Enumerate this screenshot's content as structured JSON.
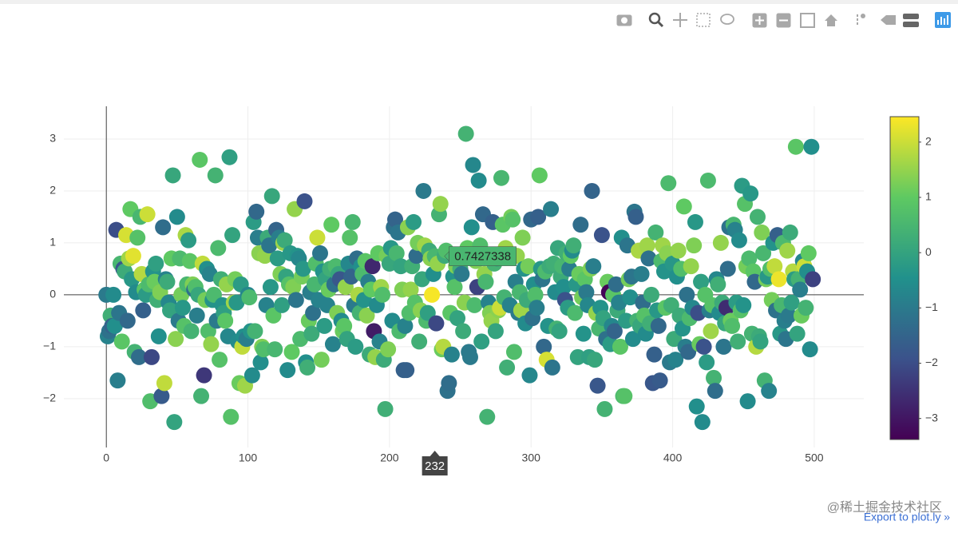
{
  "chart_data": {
    "type": "scatter",
    "x": [
      0,
      1,
      2,
      3,
      4,
      5,
      6,
      7,
      8,
      9,
      10,
      11,
      12,
      13,
      14,
      15,
      16,
      17,
      18,
      19,
      20,
      21,
      22,
      23,
      24,
      25,
      26,
      27,
      28,
      29,
      30,
      31,
      32,
      33,
      34,
      35,
      36,
      37,
      38,
      39,
      40,
      41,
      42,
      43,
      44,
      45,
      46,
      47,
      48,
      49,
      50,
      51,
      52,
      53,
      54,
      55,
      56,
      57,
      58,
      59,
      60,
      61,
      62,
      63,
      64,
      65,
      66,
      67,
      68,
      69,
      70,
      71,
      72,
      73,
      74,
      75,
      76,
      77,
      78,
      79,
      80,
      81,
      82,
      83,
      84,
      85,
      86,
      87,
      88,
      89,
      90,
      91,
      92,
      93,
      94,
      95,
      96,
      97,
      98,
      99,
      100,
      101,
      102,
      103,
      104,
      105,
      106,
      107,
      108,
      109,
      110,
      111,
      112,
      113,
      114,
      115,
      116,
      117,
      118,
      119,
      120,
      121,
      122,
      123,
      124,
      125,
      126,
      127,
      128,
      129,
      130,
      131,
      132,
      133,
      134,
      135,
      136,
      137,
      138,
      139,
      140,
      141,
      142,
      143,
      144,
      145,
      146,
      147,
      148,
      149,
      150,
      151,
      152,
      153,
      154,
      155,
      156,
      157,
      158,
      159,
      160,
      161,
      162,
      163,
      164,
      165,
      166,
      167,
      168,
      169,
      170,
      171,
      172,
      173,
      174,
      175,
      176,
      177,
      178,
      179,
      180,
      181,
      182,
      183,
      184,
      185,
      186,
      187,
      188,
      189,
      190,
      191,
      192,
      193,
      194,
      195,
      196,
      197,
      198,
      199,
      200,
      201,
      202,
      203,
      204,
      205,
      206,
      207,
      208,
      209,
      210,
      211,
      212,
      213,
      214,
      215,
      216,
      217,
      218,
      219,
      220,
      221,
      222,
      223,
      224,
      225,
      226,
      227,
      228,
      229,
      230,
      231,
      232,
      233,
      234,
      235,
      236,
      237,
      238,
      239,
      240,
      241,
      242,
      243,
      244,
      245,
      246,
      247,
      248,
      249,
      250,
      251,
      252,
      253,
      254,
      255,
      256,
      257,
      258,
      259,
      260,
      261,
      262,
      263,
      264,
      265,
      266,
      267,
      268,
      269,
      270,
      271,
      272,
      273,
      274,
      275,
      276,
      277,
      278,
      279,
      280,
      281,
      282,
      283,
      284,
      285,
      286,
      287,
      288,
      289,
      290,
      291,
      292,
      293,
      294,
      295,
      296,
      297,
      298,
      299,
      300,
      301,
      302,
      303,
      304,
      305,
      306,
      307,
      308,
      309,
      310,
      311,
      312,
      313,
      314,
      315,
      316,
      317,
      318,
      319,
      320,
      321,
      322,
      323,
      324,
      325,
      326,
      327,
      328,
      329,
      330,
      331,
      332,
      333,
      334,
      335,
      336,
      337,
      338,
      339,
      340,
      341,
      342,
      343,
      344,
      345,
      346,
      347,
      348,
      349,
      350,
      351,
      352,
      353,
      354,
      355,
      356,
      357,
      358,
      359,
      360,
      361,
      362,
      363,
      364,
      365,
      366,
      367,
      368,
      369,
      370,
      371,
      372,
      373,
      374,
      375,
      376,
      377,
      378,
      379,
      380,
      381,
      382,
      383,
      384,
      385,
      386,
      387,
      388,
      389,
      390,
      391,
      392,
      393,
      394,
      395,
      396,
      397,
      398,
      399,
      400,
      401,
      402,
      403,
      404,
      405,
      406,
      407,
      408,
      409,
      410,
      411,
      412,
      413,
      414,
      415,
      416,
      417,
      418,
      419,
      420,
      421,
      422,
      423,
      424,
      425,
      426,
      427,
      428,
      429,
      430,
      431,
      432,
      433,
      434,
      435,
      436,
      437,
      438,
      439,
      440,
      441,
      442,
      443,
      444,
      445,
      446,
      447,
      448,
      449,
      450,
      451,
      452,
      453,
      454,
      455,
      456,
      457,
      458,
      459,
      460,
      461,
      462,
      463,
      464,
      465,
      466,
      467,
      468,
      469,
      470,
      471,
      472,
      473,
      474,
      475,
      476,
      477,
      478,
      479,
      480,
      481,
      482,
      483,
      484,
      485,
      486,
      487,
      488,
      489,
      490,
      491,
      492,
      493,
      494,
      495,
      496,
      497,
      498,
      499
    ],
    "values": [
      0.0,
      -0.8,
      -0.7,
      -0.4,
      -0.6,
      0.0,
      -0.6,
      1.25,
      -1.65,
      -0.35,
      0.6,
      -0.9,
      0.5,
      0.45,
      1.15,
      -0.5,
      0.7,
      1.65,
      0.3,
      0.75,
      -1.1,
      0.05,
      1.1,
      -1.2,
      1.5,
      0.4,
      -0.3,
      0.1,
      0.0,
      1.55,
      0.2,
      -2.05,
      -1.2,
      0.45,
      0.25,
      0.6,
      -0.1,
      -0.8,
      0.05,
      -1.95,
      1.3,
      -1.7,
      0.3,
      0.25,
      -0.15,
      -0.3,
      0.7,
      2.3,
      -2.45,
      -0.85,
      1.5,
      -0.5,
      0.7,
      0.0,
      -0.25,
      -0.6,
      1.15,
      0.2,
      1.05,
      0.65,
      -0.7,
      0.2,
      0.1,
      0.15,
      -0.4,
      0.0,
      2.6,
      -1.95,
      0.6,
      -1.55,
      -0.1,
      0.5,
      -0.7,
      0.4,
      -0.95,
      -0.1,
      0.0,
      2.3,
      -0.5,
      0.9,
      -1.25,
      0.3,
      -0.2,
      -0.35,
      -0.5,
      0.2,
      -0.8,
      2.65,
      -2.35,
      1.15,
      -0.15,
      0.3,
      -0.15,
      -0.9,
      -1.7,
      0.2,
      -1.0,
      -0.8,
      -1.75,
      -0.85,
      0.0,
      -0.05,
      -0.7,
      -1.55,
      1.4,
      -0.7,
      1.6,
      1.1,
      0.8,
      -1.3,
      -1.0,
      -1.05,
      0.75,
      -0.2,
      1.1,
      0.95,
      0.15,
      1.9,
      -0.4,
      -1.05,
      1.25,
      0.7,
      1.1,
      0.4,
      -0.2,
      1.0,
      1.05,
      0.35,
      -1.45,
      0.2,
      0.8,
      -1.1,
      0.15,
      1.65,
      -0.1,
      0.75,
      0.7,
      -0.85,
      0.35,
      0.5,
      1.8,
      -1.3,
      -1.4,
      -0.5,
      0.05,
      -0.75,
      -0.35,
      0.2,
      0.6,
      1.1,
      -0.1,
      0.8,
      -1.25,
      0.45,
      -0.6,
      0.3,
      -0.2,
      0.1,
      0.5,
      1.35,
      -0.95,
      0.2,
      0.55,
      -0.35,
      0.4,
      0.3,
      -0.5,
      -0.7,
      -0.6,
      0.15,
      -0.85,
      0.6,
      1.1,
      0.35,
      1.4,
      -0.2,
      -1.0,
      0.7,
      0.0,
      -0.35,
      0.55,
      0.4,
      -0.1,
      0.65,
      -0.4,
      0.25,
      -1.15,
      0.1,
      0.55,
      -0.7,
      -1.2,
      -0.2,
      0.8,
      -0.9,
      0.15,
      0.0,
      -1.25,
      -2.2,
      0.75,
      -1.05,
      0.6,
      0.9,
      -0.5,
      1.3,
      1.45,
      0.8,
      1.2,
      -0.7,
      0.55,
      0.1,
      -1.45,
      -0.6,
      -1.45,
      1.3,
      -0.35,
      0.1,
      0.55,
      1.4,
      -0.15,
      0.75,
      1.0,
      -0.9,
      -0.3,
      0.3,
      2.0,
      0.95,
      -0.5,
      -0.35,
      0.85,
      0.7,
      0.0,
      0.4,
      0.7427338,
      -0.55,
      0.6,
      1.55,
      1.75,
      -1.05,
      -1.0,
      0.75,
      0.85,
      -1.85,
      -1.7,
      -0.35,
      -1.15,
      0.35,
      0.15,
      0.55,
      -0.45,
      0.75,
      0.5,
      0.4,
      -0.7,
      -0.15,
      3.1,
      0.9,
      -1.1,
      -1.2,
      1.3,
      2.5,
      -0.2,
      0.65,
      0.15,
      2.2,
      0.95,
      -0.9,
      1.55,
      0.4,
      0.25,
      -2.35,
      -0.15,
      -0.35,
      -0.5,
      1.4,
      0.6,
      -0.7,
      0.7,
      -0.3,
      -0.25,
      2.25,
      1.35,
      -0.05,
      0.9,
      -1.4,
      0.8,
      -0.2,
      1.5,
      1.45,
      -1.1,
      0.25,
      0.75,
      -0.35,
      0.05,
      -0.3,
      1.1,
      0.5,
      -0.55,
      -0.1,
      0.55,
      -1.55,
      1.45,
      -0.45,
      0.2,
      0.0,
      -0.25,
      1.5,
      2.3,
      0.5,
      0.3,
      -1.0,
      0.45,
      -1.25,
      -0.6,
      0.55,
      1.65,
      -1.4,
      0.6,
      0.05,
      -0.65,
      0.9,
      -0.7,
      0.35,
      0.55,
      0.15,
      -0.1,
      0.8,
      -0.25,
      0.5,
      0.75,
      0.85,
      0.95,
      -0.35,
      0.2,
      -1.2,
      0.4,
      1.35,
      -0.05,
      -0.75,
      0.3,
      0.05,
      -0.2,
      -1.2,
      0.5,
      2.0,
      0.55,
      -1.25,
      -0.35,
      -1.75,
      -0.65,
      -0.25,
      1.15,
      -0.45,
      -2.2,
      -0.85,
      0.25,
      0.05,
      -0.95,
      -0.6,
      0.0,
      -0.7,
      0.2,
      -0.3,
      -0.15,
      -1.0,
      1.1,
      -1.95,
      -1.95,
      -0.5,
      0.95,
      0.3,
      -0.05,
      0.35,
      -0.85,
      1.6,
      1.5,
      -0.5,
      0.85,
      -0.6,
      0.4,
      -0.15,
      -0.4,
      -0.75,
      0.95,
      0.7,
      -0.55,
      0.0,
      -1.7,
      -1.15,
      1.2,
      -0.3,
      -0.6,
      -1.65,
      0.65,
      0.95,
      0.45,
      -0.25,
      0.8,
      2.15,
      -1.3,
      -0.2,
      0.6,
      -0.85,
      -1.25,
      0.35,
      0.85,
      -0.4,
      0.5,
      -0.65,
      1.7,
      -1.0,
      0.0,
      -1.1,
      -0.45,
      0.55,
      -0.25,
      0.95,
      1.4,
      -2.15,
      -0.35,
      -0.95,
      0.25,
      -2.45,
      -1.0,
      0.0,
      -1.3,
      2.2,
      -0.3,
      -0.7,
      -0.2,
      -1.6,
      -1.85,
      0.3,
      0.2,
      -0.35,
      1.0,
      -0.15,
      -1.0,
      -0.55,
      -0.25,
      0.5,
      1.3,
      -0.5,
      -0.6,
      1.35,
      1.25,
      -0.15,
      -0.9,
      1.05,
      -0.3,
      2.1,
      -0.2,
      1.75,
      0.55,
      -2.05,
      0.7,
      1.95,
      -0.75,
      0.45,
      0.25,
      -1.0,
      1.5,
      -0.8,
      -0.9,
      1.2,
      0.8,
      -1.65,
      0.3,
      0.35,
      -1.85,
      0.5,
      -0.1,
      1.0,
      0.55,
      -0.3,
      1.15,
      0.3,
      -0.75,
      -0.2,
      1.0,
      -0.5,
      -0.85,
      0.85,
      -0.4,
      1.2,
      -0.15,
      0.45,
      0.3,
      2.85,
      -0.75,
      0.3,
      0.1,
      -0.4,
      0.65,
      0.55,
      -0.25,
      0.45,
      0.8,
      -1.05,
      2.85,
      0.3
    ],
    "color_values": [
      -1.0,
      -0.8,
      -1.2,
      0.3,
      -1.5,
      -0.6,
      -0.5,
      -2.0,
      -0.9,
      -1.1,
      0.5,
      0.9,
      -1.8,
      0.2,
      2.1,
      -1.4,
      1.6,
      1.0,
      -0.3,
      2.2,
      0.4,
      -0.6,
      0.8,
      -1.3,
      0.5,
      1.8,
      -1.6,
      0.9,
      -0.2,
      2.0,
      0.6,
      0.7,
      -2.1,
      -0.4,
      1.1,
      -0.1,
      0.3,
      -0.5,
      1.3,
      -1.7,
      -1.3,
      1.9,
      -0.8,
      0.2,
      -0.7,
      0.0,
      1.0,
      0.1,
      0.0,
      1.4,
      -0.6,
      -1.0,
      0.6,
      1.2,
      -0.3,
      0.8,
      1.7,
      0.5,
      -0.2,
      0.9,
      0.4,
      1.3,
      -1.2,
      0.7,
      -0.9,
      0.1,
      0.9,
      0.4,
      1.9,
      -2.4,
      1.2,
      -0.5,
      0.7,
      -0.8,
      1.5,
      -0.4,
      0.6,
      0.4,
      -1.0,
      0.6,
      0.8,
      0.3,
      -0.4,
      -0.1,
      0.9,
      1.5,
      -0.7,
      -0.1,
      0.8,
      0.0,
      1.6,
      1.2,
      -0.3,
      -0.6,
      1.1,
      -0.2,
      1.9,
      -0.5,
      1.6,
      -0.9,
      -0.7,
      0.6,
      -0.4,
      -0.6,
      -0.2,
      0.4,
      -1.4,
      -0.9,
      1.4,
      -0.5,
      1.3,
      0.7,
      1.5,
      -0.8,
      0.2,
      -1.1,
      -0.3,
      0.1,
      0.9,
      0.5,
      -1.5,
      -0.2,
      -0.9,
      1.3,
      -0.1,
      1.6,
      0.2,
      0.0,
      -0.6,
      0.8,
      -0.3,
      1.0,
      1.3,
      1.5,
      -1.1,
      -0.4,
      -0.7,
      0.6,
      1.2,
      -0.3,
      -1.9,
      -0.5,
      0.3,
      1.1,
      -0.9,
      0.2,
      -1.2,
      0.5,
      0.7,
      2.0,
      -0.8,
      -1.1,
      1.2,
      -0.4,
      -0.2,
      0.0,
      -0.8,
      1.1,
      0.3,
      1.0,
      -0.8,
      -1.2,
      0.6,
      1.3,
      0.1,
      -1.8,
      -0.6,
      1.1,
      0.9,
      1.5,
      0.0,
      -0.7,
      0.8,
      -1.5,
      0.5,
      -1.0,
      -0.2,
      -1.3,
      1.7,
      0.4,
      -0.5,
      0.6,
      -0.4,
      0.9,
      1.4,
      -0.9,
      0.2,
      1.0,
      -2.7,
      -2.9,
      1.5,
      -0.6,
      1.0,
      -0.8,
      1.6,
      0.7,
      0.2,
      0.3,
      1.2,
      1.3,
      0.1,
      -0.3,
      -0.6,
      -1.2,
      -1.5,
      0.5,
      -1.1,
      0.6,
      0.0,
      1.3,
      -1.6,
      -0.8,
      -1.6,
      1.4,
      0.7,
      1.5,
      0.3,
      -0.2,
      0.8,
      -1.3,
      1.2,
      0.3,
      1.4,
      0.1,
      -1.0,
      1.6,
      0.6,
      -0.1,
      0.2,
      1.4,
      2.4,
      -0.5,
      0.5,
      -2.1,
      1.5,
      0.4,
      1.5,
      1.1,
      1.8,
      0.2,
      0.7,
      -1.2,
      -1.3,
      0.9,
      -0.8,
      -0.4,
      0.8,
      1.3,
      0.0,
      1.1,
      0.3,
      -1.0,
      0.2,
      1.4,
      0.4,
      1.0,
      -1.0,
      -1.0,
      -0.5,
      -0.7,
      0.6,
      1.3,
      -2.2,
      -0.6,
      0.7,
      -0.1,
      -1.4,
      1.5,
      0.5,
      0.4,
      -0.8,
      1.3,
      1.5,
      -1.6,
      0.4,
      0.0,
      -0.3,
      1.4,
      2.0,
      0.5,
      0.9,
      0.4,
      1.6,
      0.3,
      1.6,
      -0.8,
      1.2,
      0.8,
      0.7,
      -0.9,
      1.5,
      -1.0,
      0.5,
      1.6,
      1.3,
      -0.4,
      -0.6,
      0.2,
      1.2,
      -0.7,
      -1.4,
      -1.2,
      -0.5,
      0.7,
      -0.9,
      -1.6,
      1.0,
      -0.3,
      -1.1,
      -1.4,
      0.6,
      2.1,
      -0.4,
      0.2,
      -0.9,
      -1.1,
      0.3,
      -0.6,
      0.4,
      0.1,
      0.0,
      0.2,
      0.5,
      -0.5,
      -1.9,
      0.3,
      -0.2,
      -0.9,
      1.0,
      -0.6,
      0.3,
      0.6,
      -0.3,
      0.0,
      1.1,
      -1.3,
      1.2,
      -0.4,
      0.9,
      -1.0,
      -0.7,
      -0.1,
      1.3,
      -1.5,
      -0.9,
      0.1,
      1.5,
      -1.8,
      0.5,
      -0.4,
      -1.9,
      0.0,
      0.4,
      -1.2,
      1.1,
      -3.3,
      -0.2,
      -0.7,
      0.9,
      -1.5,
      -1.3,
      0.2,
      -0.8,
      0.9,
      -0.5,
      0.6,
      0.8,
      -0.2,
      -1.1,
      1.2,
      -0.5,
      -1.1,
      -0.6,
      -1.1,
      -1.6,
      0.4,
      1.7,
      0.1,
      -0.9,
      -1.3,
      0.8,
      -0.6,
      1.6,
      -1.2,
      0.3,
      0.2,
      -1.8,
      -1.6,
      0.4,
      -0.3,
      -1.4,
      -1.7,
      0.6,
      1.6,
      -0.4,
      0.9,
      1.4,
      0.6,
      -1.0,
      0.3,
      -0.3,
      0.2,
      -0.8,
      -0.5,
      1.5,
      0.2,
      0.7,
      -0.4,
      1.0,
      -0.9,
      -1.2,
      -1.4,
      0.6,
      1.5,
      -0.7,
      1.3,
      -0.3,
      -0.5,
      -2.0,
      1.1,
      -0.1,
      -0.6,
      -1.9,
      0.8,
      -0.2,
      0.6,
      -0.9,
      1.6,
      0.8,
      0.4,
      -1.3,
      -0.7,
      0.3,
      -0.6,
      1.5,
      0.2,
      -1.1,
      0.1,
      -2.6,
      -1.3,
      -1.2,
      1.1,
      0.7,
      0.5,
      -0.8,
      -0.2,
      0.3,
      -0.6,
      0.8,
      -0.2,
      -0.4,
      0.8,
      1.2,
      -0.6,
      0.6,
      -0.3,
      0.4,
      0.9,
      -1.4,
      1.8,
      0.4,
      0.2,
      0.0,
      1.3,
      0.5,
      0.4,
      1.2,
      -0.3,
      -0.8,
      0.7,
      1.2,
      -0.4,
      1.9,
      -1.2,
      -1.6,
      2.3,
      -0.3,
      0.5,
      0.6,
      -0.9,
      -1.1,
      1.6,
      -1.0,
      0.2,
      -0.1,
      1.8,
      -0.2,
      0.9,
      0.0,
      0.4,
      -0.9,
      1.1,
      -0.7,
      2.0,
      0.4,
      -0.5,
      1.0,
      -0.6,
      -0.5,
      -2.2
    ],
    "colorscale": [
      [
        0,
        "#440154"
      ],
      [
        0.25,
        "#3b528b"
      ],
      [
        0.5,
        "#21918c"
      ],
      [
        0.75,
        "#5ec962"
      ],
      [
        1,
        "#fde725"
      ]
    ],
    "xlim": [
      -30,
      535
    ],
    "ylim": [
      -2.94,
      3.63
    ],
    "xticks": [
      0,
      100,
      200,
      300,
      400,
      500
    ],
    "yticks": [
      {
        "value": -2,
        "label": "−2"
      },
      {
        "value": -1,
        "label": "−1"
      },
      0,
      1,
      2,
      3
    ],
    "grid": true,
    "zeroline": true,
    "colorbar": {
      "lim": [
        -3.38,
        2.46
      ],
      "ticks": [
        {
          "value": -3,
          "label": "−3"
        },
        {
          "value": -2,
          "label": "−2"
        },
        {
          "value": -1,
          "label": "−1"
        },
        0,
        1,
        2
      ]
    },
    "hovered_point": 232
  },
  "page": {
    "export_link": "Export to plot.ly »",
    "watermark": "@稀土掘金技术社区"
  }
}
